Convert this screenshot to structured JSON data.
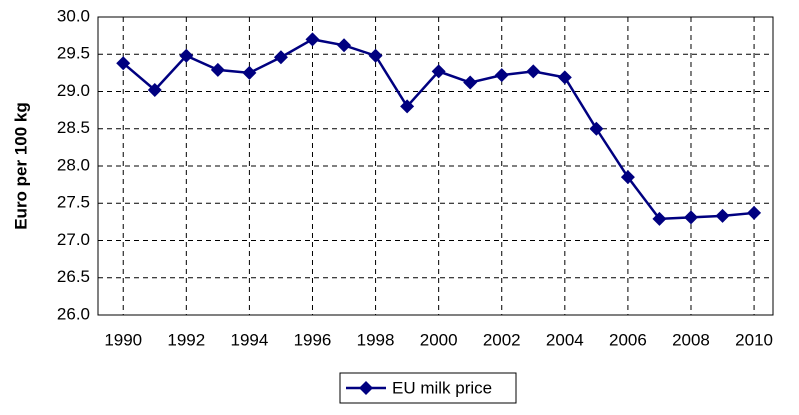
{
  "chart_data": {
    "type": "line",
    "y_label": "Euro per 100 kg",
    "x": [
      1990,
      1991,
      1992,
      1993,
      1994,
      1995,
      1996,
      1997,
      1998,
      1999,
      2000,
      2001,
      2002,
      2003,
      2004,
      2005,
      2006,
      2007,
      2008,
      2009,
      2010
    ],
    "series": [
      {
        "name": "EU milk price",
        "color": "#000080",
        "values": [
          29.38,
          29.02,
          29.48,
          29.29,
          29.25,
          29.46,
          29.7,
          29.62,
          29.48,
          28.8,
          29.27,
          29.12,
          29.22,
          29.27,
          29.19,
          28.5,
          27.85,
          27.29,
          27.31,
          27.33,
          27.37
        ]
      }
    ],
    "xlim": [
      1989.2,
      2010.6
    ],
    "xticks": [
      1990,
      1992,
      1994,
      1996,
      1998,
      2000,
      2002,
      2004,
      2006,
      2008,
      2010
    ],
    "ylim": [
      26,
      30
    ],
    "yticks": [
      {
        "value": 26,
        "label": "26.0"
      },
      {
        "value": 26.5,
        "label": "26.5"
      },
      {
        "value": 27,
        "label": "27.0"
      },
      {
        "value": 27.5,
        "label": "27.5"
      },
      {
        "value": 28,
        "label": "28.0"
      },
      {
        "value": 28.5,
        "label": "28.5"
      },
      {
        "value": 29,
        "label": "29.0"
      },
      {
        "value": 29.5,
        "label": "29.5"
      },
      {
        "value": 30,
        "label": "30.0"
      }
    ],
    "grid": true,
    "legend": "bottom"
  }
}
